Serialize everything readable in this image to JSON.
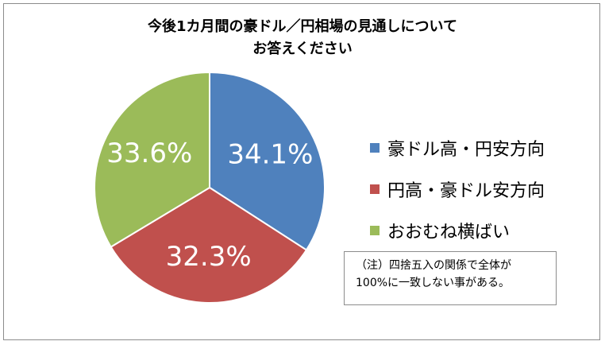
{
  "chart_data": {
    "type": "pie",
    "title_lines": [
      "今後1カ月間の豪ドル／円相場の見通しについて",
      "お答えください"
    ],
    "slices": [
      {
        "label": "豪ドル高・円安方向",
        "value": 34.1,
        "display": "34.1%",
        "color": "#4f81bd"
      },
      {
        "label": "円高・豪ドル安方向",
        "value": 32.3,
        "display": "32.3%",
        "color": "#c0504d"
      },
      {
        "label": "おおむね横ばい",
        "value": 33.6,
        "display": "33.6%",
        "color": "#9bbb59"
      }
    ],
    "legend_position": "right",
    "start_angle": "12 o'clock",
    "direction": "clockwise"
  },
  "note": {
    "line1": "（注）四捨五入の関係で全体が",
    "line2": "100%に一致しない事がある。"
  }
}
